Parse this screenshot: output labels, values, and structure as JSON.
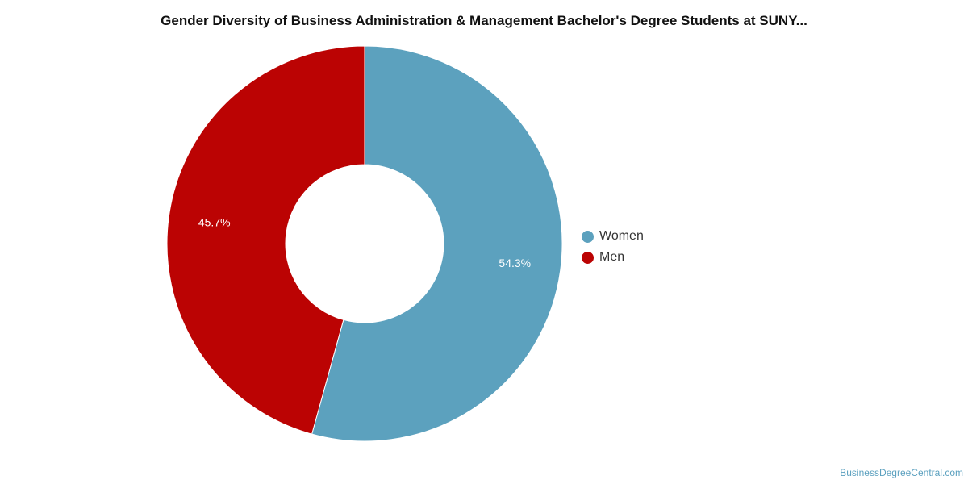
{
  "chart_data": {
    "type": "pie",
    "variant": "donut",
    "title": "Gender Diversity of Business Administration & Management Bachelor's Degree Students at SUNY...",
    "categories": [
      "Women",
      "Men"
    ],
    "values": [
      54.3,
      45.7
    ],
    "data_labels": [
      "54.3%",
      "45.7%"
    ],
    "colors": [
      "#5ca1be",
      "#bb0303"
    ],
    "legend_position": "right"
  },
  "legend": {
    "items": [
      {
        "label": "Women",
        "color": "#5ca1be"
      },
      {
        "label": "Men",
        "color": "#bb0303"
      }
    ]
  },
  "footer": {
    "watermark": "BusinessDegreeCentral.com"
  }
}
